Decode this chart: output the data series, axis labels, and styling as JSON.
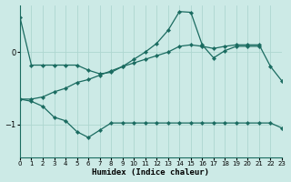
{
  "xlabel": "Humidex (Indice chaleur)",
  "bg_color": "#cceae6",
  "line_color": "#1a6b60",
  "grid_color": "#aed6d0",
  "xlim": [
    0,
    23
  ],
  "ylim": [
    -1.45,
    0.65
  ],
  "yticks": [
    0,
    -1
  ],
  "xticks": [
    0,
    1,
    2,
    3,
    4,
    5,
    6,
    7,
    8,
    9,
    10,
    11,
    12,
    13,
    14,
    15,
    16,
    17,
    18,
    19,
    20,
    21,
    22,
    23
  ],
  "series1_x": [
    0,
    1,
    2,
    3,
    4,
    5,
    6,
    7,
    8,
    9,
    10,
    11,
    12,
    13,
    14,
    15,
    16,
    17,
    18,
    19,
    20,
    21
  ],
  "series1_y": [
    0.48,
    -0.18,
    -0.18,
    -0.18,
    -0.18,
    -0.18,
    -0.25,
    -0.3,
    -0.28,
    -0.2,
    -0.1,
    0.0,
    0.12,
    0.3,
    0.56,
    0.55,
    0.1,
    -0.08,
    0.02,
    0.08,
    0.08,
    0.08
  ],
  "series2_x": [
    0,
    1,
    2,
    3,
    4,
    5,
    6,
    7,
    8,
    9,
    10,
    11,
    12,
    13,
    14,
    15,
    16,
    17,
    18,
    19,
    20,
    21,
    22,
    23
  ],
  "series2_y": [
    -0.65,
    -0.65,
    -0.62,
    -0.55,
    -0.5,
    -0.42,
    -0.38,
    -0.32,
    -0.26,
    -0.2,
    -0.15,
    -0.1,
    -0.05,
    0.0,
    0.08,
    0.1,
    0.08,
    0.05,
    0.08,
    0.1,
    0.1,
    0.1,
    -0.2,
    -0.4
  ],
  "series3_x": [
    0,
    1,
    2,
    3,
    4,
    5,
    6,
    7,
    8,
    9,
    10,
    11,
    12,
    13,
    14,
    15,
    16,
    17,
    18,
    19,
    20,
    21,
    22,
    23
  ],
  "series3_y": [
    -0.65,
    -0.68,
    -0.75,
    -0.9,
    -0.95,
    -1.1,
    -1.18,
    -1.08,
    -0.98,
    -0.98,
    -0.98,
    -0.98,
    -0.98,
    -0.98,
    -0.98,
    -0.98,
    -0.98,
    -0.98,
    -0.98,
    -0.98,
    -0.98,
    -0.98,
    -0.98,
    -1.05
  ]
}
